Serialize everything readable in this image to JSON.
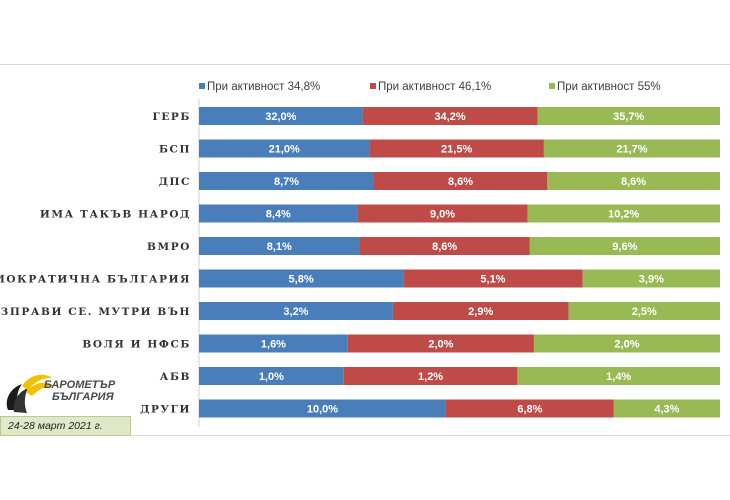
{
  "chart_data": {
    "type": "bar",
    "stacked": "percent",
    "orientation": "horizontal",
    "legend_position": "top",
    "categories": [
      "ГЕРБ",
      "БСП",
      "ДПС",
      "ИМА ТАКЪВ НАРОД",
      "ВМРО",
      "ДЕМОКРАТИЧНА БЪЛГАРИЯ",
      "ИЗПРАВИ СЕ. МУТРИ ВЪН",
      "ВОЛЯ И НФСБ",
      "АБВ",
      "ДРУГИ"
    ],
    "series": [
      {
        "name": "При активност 34,8%",
        "color": "#4a7ebb",
        "values": [
          32.0,
          21.0,
          8.7,
          8.4,
          8.1,
          5.8,
          3.2,
          1.6,
          1.0,
          10.0
        ],
        "labels": [
          "32,0%",
          "21,0%",
          "8,7%",
          "8,4%",
          "8,1%",
          "5,8%",
          "3,2%",
          "1,6%",
          "1,0%",
          "10,0%"
        ]
      },
      {
        "name": "При активност 46,1%",
        "color": "#be4b48",
        "values": [
          34.2,
          21.5,
          8.6,
          9.0,
          8.6,
          5.1,
          2.9,
          2.0,
          1.2,
          6.8
        ],
        "labels": [
          "34,2%",
          "21,5%",
          "8,6%",
          "9,0%",
          "8,6%",
          "5,1%",
          "2,9%",
          "2,0%",
          "1,2%",
          "6,8%"
        ]
      },
      {
        "name": "При активност 55%",
        "color": "#98b954",
        "values": [
          35.7,
          21.7,
          8.6,
          10.2,
          9.6,
          3.9,
          2.5,
          2.0,
          1.4,
          4.3
        ],
        "labels": [
          "35,7%",
          "21,7%",
          "8,6%",
          "10,2%",
          "9,6%",
          "3,9%",
          "2,5%",
          "2,0%",
          "1,4%",
          "4,3%"
        ]
      }
    ]
  },
  "logo": {
    "line1": "БАРОМЕТЪР",
    "line2": "БЪЛГАРИЯ"
  },
  "date_note": "24-28 март 2021 г."
}
